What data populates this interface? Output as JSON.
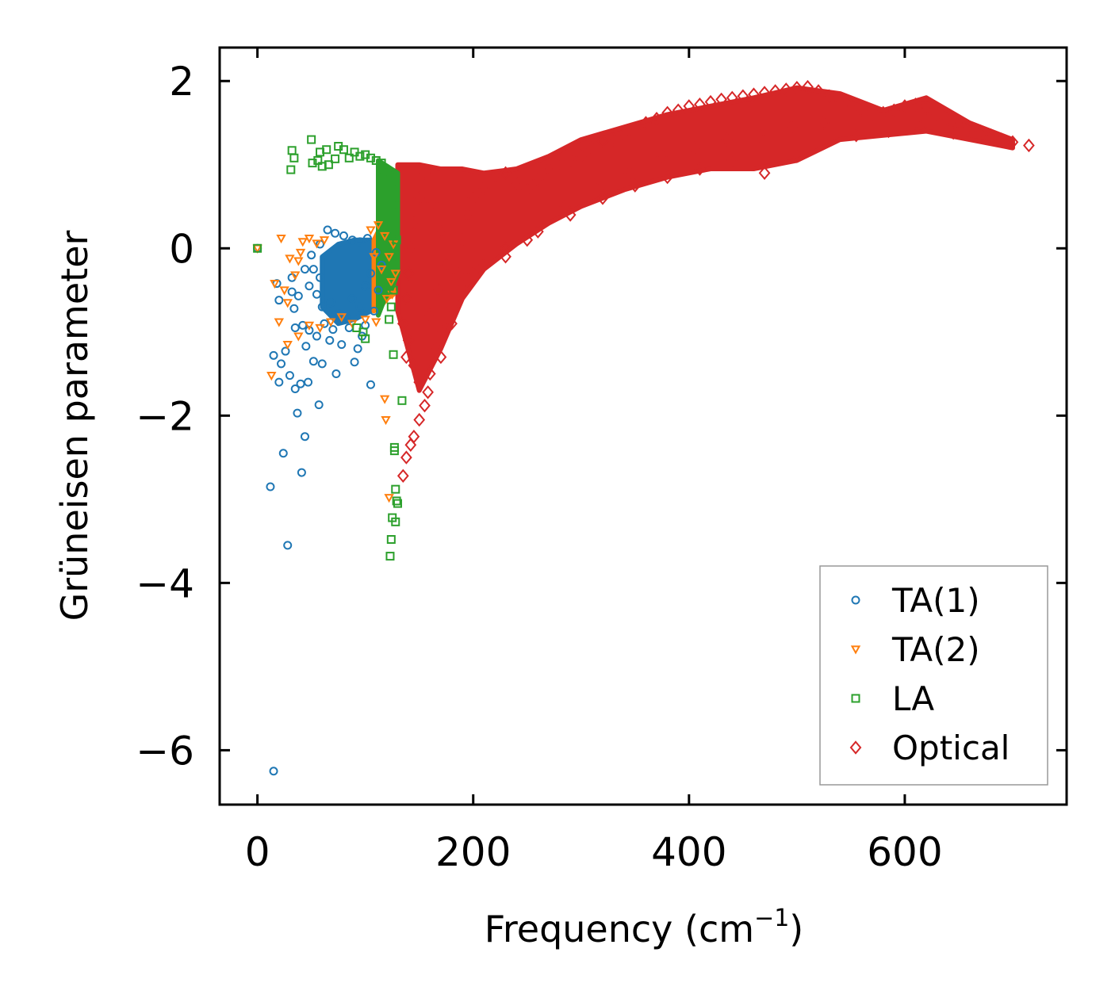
{
  "chart_data": {
    "type": "scatter",
    "xlabel": "Frequency (cm",
    "xlabel_sup": "−1",
    "xlabel_close": ")",
    "ylabel": "Grüneisen parameter",
    "xlim": [
      -35,
      750
    ],
    "ylim": [
      -6.65,
      2.4
    ],
    "xticks": [
      0,
      200,
      400,
      600
    ],
    "xtick_labels": [
      "0",
      "200",
      "400",
      "600"
    ],
    "yticks": [
      2,
      0,
      -2,
      -4,
      -6
    ],
    "ytick_labels": [
      "2",
      "0",
      "−2",
      "−4",
      "−6"
    ],
    "grid": false,
    "legend_position": "lower-right",
    "series": [
      {
        "name": "TA(1)",
        "marker": "circle",
        "color": "#1f77b4",
        "points": [
          [
            0,
            0
          ],
          [
            15,
            -6.25
          ],
          [
            12,
            -2.85
          ],
          [
            28,
            -3.55
          ],
          [
            24,
            -2.45
          ],
          [
            41,
            -2.68
          ],
          [
            44,
            -2.25
          ],
          [
            37,
            -1.97
          ],
          [
            57,
            -1.87
          ],
          [
            105,
            -1.63
          ],
          [
            20,
            -1.6
          ],
          [
            35,
            -1.68
          ],
          [
            40,
            -1.62
          ],
          [
            47,
            -1.6
          ],
          [
            30,
            -1.52
          ],
          [
            52,
            -1.35
          ],
          [
            60,
            -1.38
          ],
          [
            73,
            -1.5
          ],
          [
            90,
            -1.36
          ],
          [
            15,
            -1.28
          ],
          [
            22,
            -1.38
          ],
          [
            26,
            -1.23
          ],
          [
            45,
            -1.17
          ],
          [
            67,
            -1.1
          ],
          [
            78,
            -1.15
          ],
          [
            93,
            -1.2
          ],
          [
            97,
            -1.05
          ],
          [
            18,
            -0.42
          ],
          [
            20,
            -0.62
          ],
          [
            32,
            -0.52
          ],
          [
            34,
            -0.72
          ],
          [
            38,
            -0.57
          ],
          [
            42,
            -0.92
          ],
          [
            35,
            -0.95
          ],
          [
            48,
            -0.98
          ],
          [
            55,
            -1.05
          ],
          [
            62,
            -0.9
          ],
          [
            70,
            -0.97
          ],
          [
            85,
            -0.95
          ],
          [
            100,
            -0.92
          ],
          [
            32,
            -0.35
          ],
          [
            44,
            -0.25
          ],
          [
            50,
            -0.08
          ],
          [
            58,
            0.05
          ],
          [
            65,
            0.22
          ],
          [
            72,
            0.18
          ],
          [
            80,
            0.15
          ],
          [
            88,
            0.1
          ],
          [
            95,
            0.08
          ],
          [
            102,
            0.12
          ],
          [
            110,
            -0.05
          ],
          [
            115,
            -0.2
          ],
          [
            112,
            -0.5
          ],
          [
            108,
            -0.75
          ],
          [
            55,
            -0.55
          ],
          [
            60,
            -0.7
          ],
          [
            68,
            -0.65
          ],
          [
            75,
            -0.78
          ],
          [
            82,
            -0.82
          ],
          [
            88,
            -0.6
          ],
          [
            95,
            -0.7
          ],
          [
            100,
            -0.45
          ],
          [
            105,
            -0.3
          ],
          [
            52,
            -0.25
          ],
          [
            48,
            -0.45
          ],
          [
            58,
            -0.35
          ]
        ]
      },
      {
        "name": "TA(2)",
        "marker": "triangle-down",
        "color": "#ff7f0e",
        "points": [
          [
            0,
            0
          ],
          [
            22,
            0.12
          ],
          [
            16,
            -0.42
          ],
          [
            13,
            -1.52
          ],
          [
            20,
            -0.88
          ],
          [
            25,
            -0.5
          ],
          [
            28,
            -0.65
          ],
          [
            30,
            -0.12
          ],
          [
            35,
            -0.32
          ],
          [
            38,
            -0.15
          ],
          [
            40,
            -0.05
          ],
          [
            42,
            0.08
          ],
          [
            48,
            0.12
          ],
          [
            55,
            0.06
          ],
          [
            62,
            0.1
          ],
          [
            28,
            -1.15
          ],
          [
            38,
            -1.05
          ],
          [
            48,
            -0.92
          ],
          [
            58,
            -0.95
          ],
          [
            68,
            -0.88
          ],
          [
            78,
            -0.82
          ],
          [
            88,
            -0.9
          ],
          [
            100,
            -0.85
          ],
          [
            110,
            -0.88
          ],
          [
            118,
            -1.8
          ],
          [
            119,
            -2.05
          ],
          [
            122,
            -2.98
          ],
          [
            105,
            0.22
          ],
          [
            112,
            0.28
          ],
          [
            118,
            0.15
          ],
          [
            122,
            -0.1
          ],
          [
            124,
            -0.4
          ],
          [
            120,
            -0.6
          ],
          [
            115,
            -0.25
          ],
          [
            108,
            -0.1
          ],
          [
            126,
            0.05
          ],
          [
            128,
            -0.3
          ],
          [
            125,
            -0.55
          ]
        ]
      },
      {
        "name": "LA",
        "marker": "square",
        "color": "#2ca02c",
        "points": [
          [
            0,
            0
          ],
          [
            32,
            1.17
          ],
          [
            31,
            0.94
          ],
          [
            34,
            1.08
          ],
          [
            50,
            1.3
          ],
          [
            51,
            1.02
          ],
          [
            56,
            1.05
          ],
          [
            58,
            1.15
          ],
          [
            60,
            0.98
          ],
          [
            64,
            1.18
          ],
          [
            66,
            1.0
          ],
          [
            72,
            1.07
          ],
          [
            75,
            1.22
          ],
          [
            80,
            1.18
          ],
          [
            85,
            1.08
          ],
          [
            90,
            1.15
          ],
          [
            95,
            1.1
          ],
          [
            100,
            1.12
          ],
          [
            105,
            1.08
          ],
          [
            110,
            1.05
          ],
          [
            115,
            1.02
          ],
          [
            118,
            0.95
          ],
          [
            122,
            0.9
          ],
          [
            125,
            0.7
          ],
          [
            128,
            0.5
          ],
          [
            127,
            0.3
          ],
          [
            129,
            0.1
          ],
          [
            128,
            -0.2
          ],
          [
            126,
            -0.5
          ],
          [
            124,
            -0.7
          ],
          [
            122,
            -0.85
          ],
          [
            126,
            -1.27
          ],
          [
            134,
            -1.82
          ],
          [
            127,
            -2.38
          ],
          [
            127,
            -2.42
          ],
          [
            128,
            -2.88
          ],
          [
            129,
            -3.02
          ],
          [
            130,
            -3.05
          ],
          [
            128,
            -3.27
          ],
          [
            125,
            -3.22
          ],
          [
            124,
            -3.48
          ],
          [
            123,
            -3.68
          ],
          [
            100,
            -1.08
          ],
          [
            98,
            -1.0
          ],
          [
            92,
            -0.95
          ]
        ]
      },
      {
        "name": "Optical",
        "marker": "diamond",
        "color": "#d62728",
        "points": [
          [
            135,
            -2.72
          ],
          [
            138,
            -2.5
          ],
          [
            142,
            -2.35
          ],
          [
            145,
            -2.25
          ],
          [
            150,
            -2.05
          ],
          [
            155,
            -1.88
          ],
          [
            158,
            -1.72
          ],
          [
            150,
            -1.6
          ],
          [
            145,
            -1.4
          ],
          [
            138,
            -1.3
          ],
          [
            140,
            -1.1
          ],
          [
            135,
            -0.9
          ],
          [
            138,
            -0.6
          ],
          [
            140,
            -0.3
          ],
          [
            142,
            0.0
          ],
          [
            145,
            0.3
          ],
          [
            150,
            0.6
          ],
          [
            155,
            0.9
          ],
          [
            162,
            0.55
          ],
          [
            170,
            0.2
          ],
          [
            175,
            -0.2
          ],
          [
            168,
            -0.5
          ],
          [
            160,
            -0.8
          ],
          [
            172,
            -1.0
          ],
          [
            180,
            -0.7
          ],
          [
            186,
            -0.3
          ],
          [
            190,
            0.1
          ],
          [
            195,
            0.4
          ],
          [
            200,
            0.6
          ],
          [
            210,
            0.72
          ],
          [
            220,
            0.85
          ],
          [
            230,
            0.9
          ],
          [
            240,
            0.78
          ],
          [
            250,
            0.7
          ],
          [
            260,
            0.82
          ],
          [
            270,
            0.95
          ],
          [
            280,
            1.0
          ],
          [
            290,
            1.05
          ],
          [
            300,
            1.1
          ],
          [
            310,
            1.2
          ],
          [
            320,
            1.28
          ],
          [
            330,
            1.3
          ],
          [
            340,
            1.35
          ],
          [
            350,
            1.42
          ],
          [
            360,
            1.5
          ],
          [
            370,
            1.55
          ],
          [
            380,
            1.62
          ],
          [
            390,
            1.65
          ],
          [
            400,
            1.7
          ],
          [
            410,
            1.72
          ],
          [
            420,
            1.75
          ],
          [
            430,
            1.78
          ],
          [
            440,
            1.8
          ],
          [
            450,
            1.82
          ],
          [
            460,
            1.84
          ],
          [
            470,
            1.86
          ],
          [
            480,
            1.88
          ],
          [
            490,
            1.9
          ],
          [
            500,
            1.92
          ],
          [
            510,
            1.93
          ],
          [
            520,
            1.88
          ],
          [
            530,
            1.82
          ],
          [
            540,
            1.76
          ],
          [
            550,
            1.7
          ],
          [
            560,
            1.65
          ],
          [
            570,
            1.6
          ],
          [
            580,
            1.62
          ],
          [
            590,
            1.65
          ],
          [
            600,
            1.7
          ],
          [
            610,
            1.72
          ],
          [
            620,
            1.68
          ],
          [
            630,
            1.6
          ],
          [
            640,
            1.55
          ],
          [
            650,
            1.5
          ],
          [
            660,
            1.45
          ],
          [
            670,
            1.4
          ],
          [
            680,
            1.35
          ],
          [
            690,
            1.3
          ],
          [
            700,
            1.27
          ],
          [
            715,
            1.23
          ],
          [
            230,
            0.0
          ],
          [
            260,
            0.2
          ],
          [
            290,
            0.4
          ],
          [
            320,
            0.6
          ],
          [
            350,
            0.75
          ],
          [
            380,
            0.85
          ],
          [
            410,
            0.95
          ],
          [
            440,
            1.05
          ],
          [
            470,
            0.9
          ],
          [
            500,
            1.1
          ],
          [
            200,
            -0.3
          ],
          [
            230,
            -0.1
          ],
          [
            180,
            -0.9
          ],
          [
            170,
            -1.3
          ],
          [
            160,
            -1.5
          ],
          [
            165,
            -1.2
          ],
          [
            190,
            -0.45
          ],
          [
            210,
            -0.2
          ],
          [
            250,
            0.1
          ],
          [
            285,
            0.5
          ],
          [
            315,
            0.7
          ],
          [
            345,
            0.9
          ],
          [
            375,
            1.1
          ],
          [
            405,
            1.2
          ],
          [
            435,
            1.3
          ],
          [
            465,
            1.35
          ],
          [
            495,
            1.45
          ],
          [
            525,
            1.5
          ],
          [
            555,
            1.35
          ],
          [
            585,
            1.4
          ],
          [
            615,
            1.45
          ],
          [
            645,
            1.38
          ]
        ]
      }
    ],
    "bands": [
      {
        "series": "Optical",
        "x": [
          130,
          150,
          170,
          190,
          210,
          240,
          270,
          300,
          340,
          380,
          420,
          460,
          500,
          540,
          580,
          620,
          660,
          700
        ],
        "lo": [
          -0.75,
          -1.7,
          -1.2,
          -0.6,
          -0.25,
          0.05,
          0.3,
          0.5,
          0.7,
          0.85,
          0.95,
          0.95,
          1.05,
          1.3,
          1.35,
          1.4,
          1.3,
          1.2
        ],
        "hi": [
          1.0,
          1.0,
          0.95,
          0.95,
          0.9,
          0.95,
          1.1,
          1.3,
          1.45,
          1.6,
          1.7,
          1.8,
          1.92,
          1.85,
          1.65,
          1.8,
          1.5,
          1.3
        ]
      },
      {
        "series": "TA(1)",
        "x": [
          60,
          75,
          90,
          105,
          115
        ],
        "lo": [
          -0.7,
          -0.9,
          -0.85,
          -0.75,
          -0.6
        ],
        "hi": [
          -0.1,
          0.05,
          0.1,
          0.1,
          -0.1
        ]
      },
      {
        "series": "TA(2)",
        "x": [
          108,
          114,
          120,
          126
        ],
        "lo": [
          -0.75,
          -0.7,
          -0.6,
          -0.55
        ],
        "hi": [
          0.1,
          0.25,
          0.3,
          0.1
        ]
      },
      {
        "series": "LA",
        "x": [
          112,
          118,
          124,
          130
        ],
        "lo": [
          -0.8,
          -0.6,
          -0.5,
          -0.3
        ],
        "hi": [
          1.05,
          1.0,
          0.95,
          0.9
        ]
      }
    ]
  }
}
